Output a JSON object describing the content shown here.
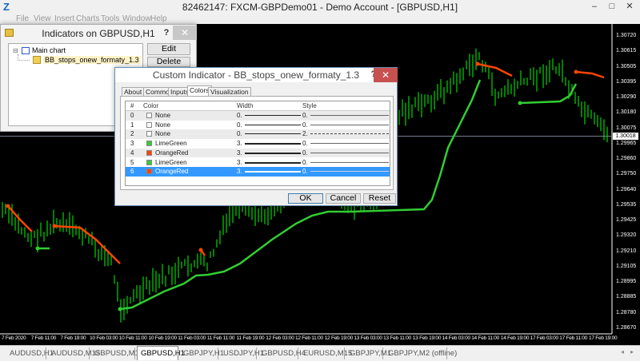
{
  "window": {
    "title": "82462147: FXCM-GBPDemo01 - Demo Account - [GBPUSD,H1]",
    "logo": "Z",
    "minimize": "–",
    "maximize": "□",
    "close": "✕"
  },
  "menu": [
    "File",
    "View",
    "Insert",
    "Charts",
    "Tools",
    "Window",
    "Help"
  ],
  "indicators_window": {
    "title": "Indicators on GBPUSD,H1",
    "help": "?",
    "close": "✕",
    "tree": {
      "root": "Main chart",
      "child": "BB_stops_onew_formaty_1.3"
    },
    "edit": "Edit",
    "delete": "Delete"
  },
  "dialog": {
    "title": "Custom Indicator - BB_stops_onew_formaty_1.3",
    "help": "?",
    "close": "✕",
    "tabs": [
      "About",
      "Common",
      "Inputs",
      "Colors",
      "Visualization"
    ],
    "active_tab": "Colors",
    "columns": [
      "#",
      "Color",
      "Width",
      "Style"
    ],
    "rows": [
      {
        "idx": "0",
        "color": "None",
        "swatch": "#ffffff",
        "width": "0.",
        "style": "0."
      },
      {
        "idx": "1",
        "color": "None",
        "swatch": "#ffffff",
        "width": "0.",
        "style": "0."
      },
      {
        "idx": "2",
        "color": "None",
        "swatch": "#ffffff",
        "width": "0.",
        "style": "2."
      },
      {
        "idx": "3",
        "color": "LimeGreen",
        "swatch": "#32cd32",
        "width": "3.",
        "style": "0."
      },
      {
        "idx": "4",
        "color": "OrangeRed",
        "swatch": "#ff4500",
        "width": "3.",
        "style": "0."
      },
      {
        "idx": "5",
        "color": "LimeGreen",
        "swatch": "#32cd32",
        "width": "3.",
        "style": "0."
      },
      {
        "idx": "6",
        "color": "OrangeRed",
        "swatch": "#ff4500",
        "width": "3.",
        "style": "0.",
        "selected": true
      }
    ],
    "ok": "OK",
    "cancel": "Cancel",
    "reset": "Reset"
  },
  "chart": {
    "symbol": "GBPUSD",
    "timeframe": "H1",
    "price_labels": [
      "1.30720",
      "1.30615",
      "1.30505",
      "1.30395",
      "1.30290",
      "1.30180",
      "1.30075",
      "1.29965",
      "1.29860",
      "1.29750",
      "1.29640",
      "1.29535",
      "1.29425",
      "1.29320",
      "1.29210",
      "1.29105",
      "1.28995",
      "1.28885",
      "1.28780",
      "1.28670"
    ],
    "current_price": "1.30018",
    "time_labels": [
      "7 Feb 2020",
      "7 Feb 11:00",
      "7 Feb 19:00",
      "10 Feb 03:00",
      "10 Feb 11:00",
      "10 Feb 19:00",
      "11 Feb 03:00",
      "11 Feb 11:00",
      "11 Feb 19:00",
      "12 Feb 03:00",
      "12 Feb 11:00",
      "12 Feb 19:00",
      "13 Feb 03:00",
      "13 Feb 11:00",
      "13 Feb 19:00",
      "14 Feb 03:00",
      "14 Feb 11:00",
      "14 Feb 19:00",
      "17 Feb 03:00",
      "17 Feb 11:00",
      "17 Feb 19:00"
    ],
    "colors": {
      "background": "#000000",
      "bars": "#00ff00",
      "up_stop": "#32cd32",
      "down_stop": "#ff4500"
    }
  },
  "tabs": [
    {
      "label": "AUDUSD,H1"
    },
    {
      "label": "AUDUSD,M15"
    },
    {
      "label": "GBPUSD,M15"
    },
    {
      "label": "GBPUSD,H1",
      "active": true
    },
    {
      "label": "GBPJPY,H1"
    },
    {
      "label": "USDJPY,H1"
    },
    {
      "label": "GBPUSD,H4"
    },
    {
      "label": "EURUSD,M15"
    },
    {
      "label": "GBPJPY,M1"
    },
    {
      "label": "GBPJPY,M2 (offline)"
    }
  ],
  "tab_scroll": {
    "left": "◂",
    "right": "▸"
  }
}
